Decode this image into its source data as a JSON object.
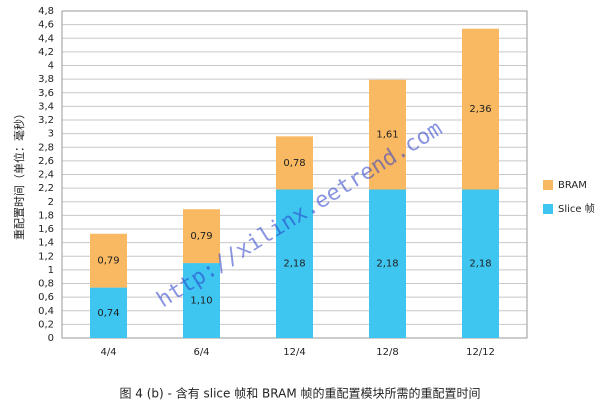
{
  "chart_data": {
    "type": "stacked_bar",
    "caption": "图 4 (b) - 含有 slice 帧和 BRAM 帧的重配置模块所需的重配置时间",
    "y_label": "重配置时间（单位：毫秒）",
    "watermark": "http://xilinx.eetrend.com",
    "categories": [
      "4/4",
      "6/4",
      "12/4",
      "12/8",
      "12/12"
    ],
    "series": [
      {
        "name": "Slice 帧",
        "color": "#3ec6f0",
        "values": [
          0.74,
          1.1,
          2.18,
          2.18,
          2.18
        ],
        "value_labels": [
          "0,74",
          "1,10",
          "2,18",
          "2,18",
          "2,18"
        ]
      },
      {
        "name": "BRAM",
        "color": "#f9b862",
        "values": [
          0.79,
          0.79,
          0.78,
          1.61,
          2.36
        ],
        "value_labels": [
          "0,79",
          "0,79",
          "0,78",
          "1,61",
          "2,36"
        ]
      }
    ],
    "ylim": [
      0,
      4.8
    ],
    "yticks": [
      0,
      {
        "value": 0.2,
        "label": "0,2"
      },
      {
        "value": 0.4,
        "label": "0,4"
      },
      {
        "value": 0.6,
        "label": "0,6"
      },
      {
        "value": 0.8,
        "label": "0,8"
      },
      1,
      {
        "value": 1.2,
        "label": "1,2"
      },
      {
        "value": 1.4,
        "label": "1,4"
      },
      {
        "value": 1.6,
        "label": "1,6"
      },
      {
        "value": 1.8,
        "label": "1,8"
      },
      2,
      {
        "value": 2.2,
        "label": "2,2"
      },
      {
        "value": 2.4,
        "label": "2,4"
      },
      {
        "value": 2.6,
        "label": "2,6"
      },
      {
        "value": 2.8,
        "label": "2,8"
      },
      3,
      {
        "value": 3.2,
        "label": "3,2"
      },
      {
        "value": 3.4,
        "label": "3,4"
      },
      {
        "value": 3.6,
        "label": "3,6"
      },
      {
        "value": 3.8,
        "label": "3,8"
      },
      4,
      {
        "value": 4.2,
        "label": "4,2"
      },
      {
        "value": 4.4,
        "label": "4,4"
      },
      {
        "value": 4.6,
        "label": "4,6"
      },
      {
        "value": 4.8,
        "label": "4,8"
      }
    ],
    "grid": true,
    "legend": "right"
  }
}
